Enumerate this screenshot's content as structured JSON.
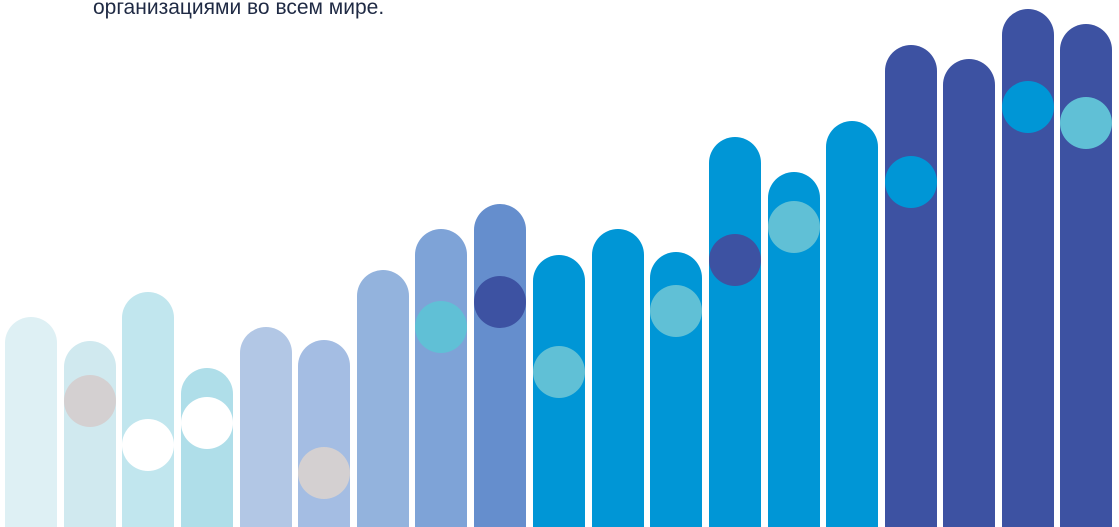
{
  "caption": "организациями во всем мире.",
  "decoration": {
    "bars": [
      {
        "color": "#def0f4",
        "dot_color": null
      },
      {
        "color": "#d0e9ef",
        "dot_color": "#d4d0d1"
      },
      {
        "color": "#c1e6ee",
        "dot_color": "#ffffff"
      },
      {
        "color": "#afdee9",
        "dot_color": "#ffffff"
      },
      {
        "color": "#b2c7e5",
        "dot_color": null
      },
      {
        "color": "#a4bde3",
        "dot_color": "#d4d0d1"
      },
      {
        "color": "#93b3dd",
        "dot_color": null
      },
      {
        "color": "#7ea3d7",
        "dot_color": "#60c0d6"
      },
      {
        "color": "#658ecd",
        "dot_color": "#3d52a2"
      },
      {
        "color": "#0096d6",
        "dot_color": "#60c0d6"
      },
      {
        "color": "#0096d6",
        "dot_color": null
      },
      {
        "color": "#0096d6",
        "dot_color": "#60c0d6"
      },
      {
        "color": "#0096d6",
        "dot_color": "#3d52a2"
      },
      {
        "color": "#0096d6",
        "dot_color": "#60c0d6"
      },
      {
        "color": "#0096d6",
        "dot_color": null
      },
      {
        "color": "#3d52a2",
        "dot_color": "#0096d6"
      },
      {
        "color": "#3d52a2",
        "dot_color": null
      },
      {
        "color": "#3d52a2",
        "dot_color": "#0096d6"
      },
      {
        "color": "#3d52a2",
        "dot_color": "#60c0d6"
      }
    ]
  }
}
